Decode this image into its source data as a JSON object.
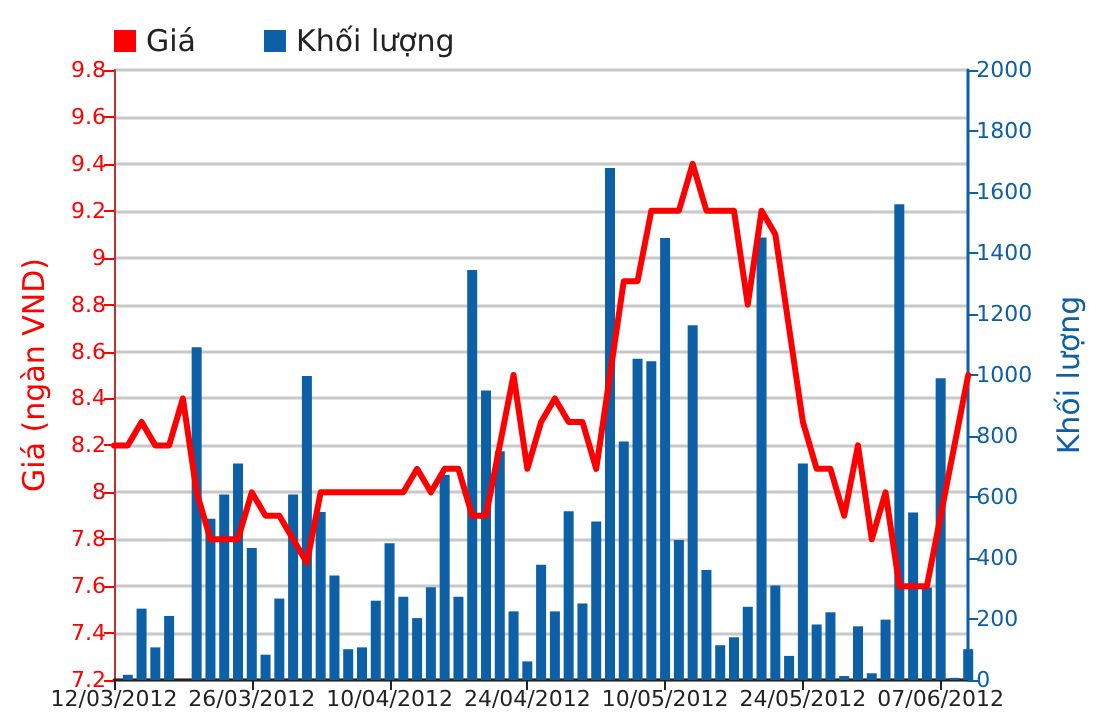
{
  "chart_data": {
    "type": "bar",
    "ylabel": "Giá (ngàn VND)",
    "y2label": "Khối lượng",
    "categories": [
      "12/03/2012",
      null,
      null,
      null,
      null,
      null,
      null,
      null,
      null,
      null,
      "26/03/2012",
      null,
      null,
      null,
      null,
      null,
      null,
      null,
      null,
      null,
      "10/04/2012",
      null,
      null,
      null,
      null,
      null,
      null,
      null,
      null,
      null,
      "24/04/2012",
      null,
      null,
      null,
      null,
      null,
      null,
      null,
      null,
      null,
      "10/05/2012",
      null,
      null,
      null,
      null,
      null,
      null,
      null,
      null,
      null,
      "24/05/2012",
      null,
      null,
      null,
      null,
      null,
      null,
      null,
      null,
      null,
      "07/06/2012",
      null,
      null
    ],
    "series": [
      {
        "name": "Giá",
        "type": "line",
        "color": "#ff0000",
        "values": [
          8.2,
          8.2,
          8.3,
          8.2,
          8.2,
          8.4,
          8.0,
          7.8,
          7.8,
          7.8,
          8.0,
          7.9,
          7.9,
          7.8,
          7.7,
          8.0,
          8.0,
          8.0,
          8.0,
          8.0,
          8.0,
          8.0,
          8.1,
          8.0,
          8.1,
          8.1,
          7.9,
          7.9,
          8.2,
          8.5,
          8.1,
          8.3,
          8.4,
          8.3,
          8.3,
          8.1,
          8.5,
          8.9,
          8.9,
          9.2,
          9.2,
          9.2,
          9.4,
          9.2,
          9.2,
          9.2,
          8.8,
          9.2,
          9.1,
          8.7,
          8.3,
          8.1,
          8.1,
          7.9,
          8.2,
          7.8,
          8.0,
          7.6,
          7.6,
          7.6,
          7.9,
          8.2,
          8.5
        ]
      },
      {
        "name": "Khối lượng",
        "axis": "y2",
        "color": "#0d5fa6",
        "values": [
          0,
          17,
          234,
          107,
          210,
          0,
          1091,
          529,
          608,
          710,
          433,
          83,
          267,
          608,
          997,
          551,
          343,
          101,
          107,
          260,
          448,
          273,
          203,
          304,
          673,
          273,
          1344,
          949,
          750,
          225,
          61,
          378,
          225,
          553,
          251,
          520,
          1679,
          782,
          1053,
          1045,
          1449,
          459,
          1163,
          361,
          114,
          140,
          240,
          1451,
          310,
          79,
          710,
          182,
          222,
          13,
          176,
          22,
          198,
          1560,
          549,
          303,
          989,
          7,
          101
        ]
      }
    ],
    "ylim": [
      7.2,
      9.8
    ],
    "yticks": [
      7.2,
      7.4,
      7.6,
      7.8,
      8,
      8.2,
      8.4,
      8.6,
      8.8,
      9,
      9.2,
      9.4,
      9.6,
      9.8
    ],
    "y2lim": [
      0,
      2000
    ],
    "y2ticks": [
      0,
      200,
      400,
      600,
      800,
      1000,
      1200,
      1400,
      1600,
      1800,
      2000
    ],
    "grid": "y",
    "legend": "top left",
    "marker": "none",
    "line_style": "solid"
  }
}
